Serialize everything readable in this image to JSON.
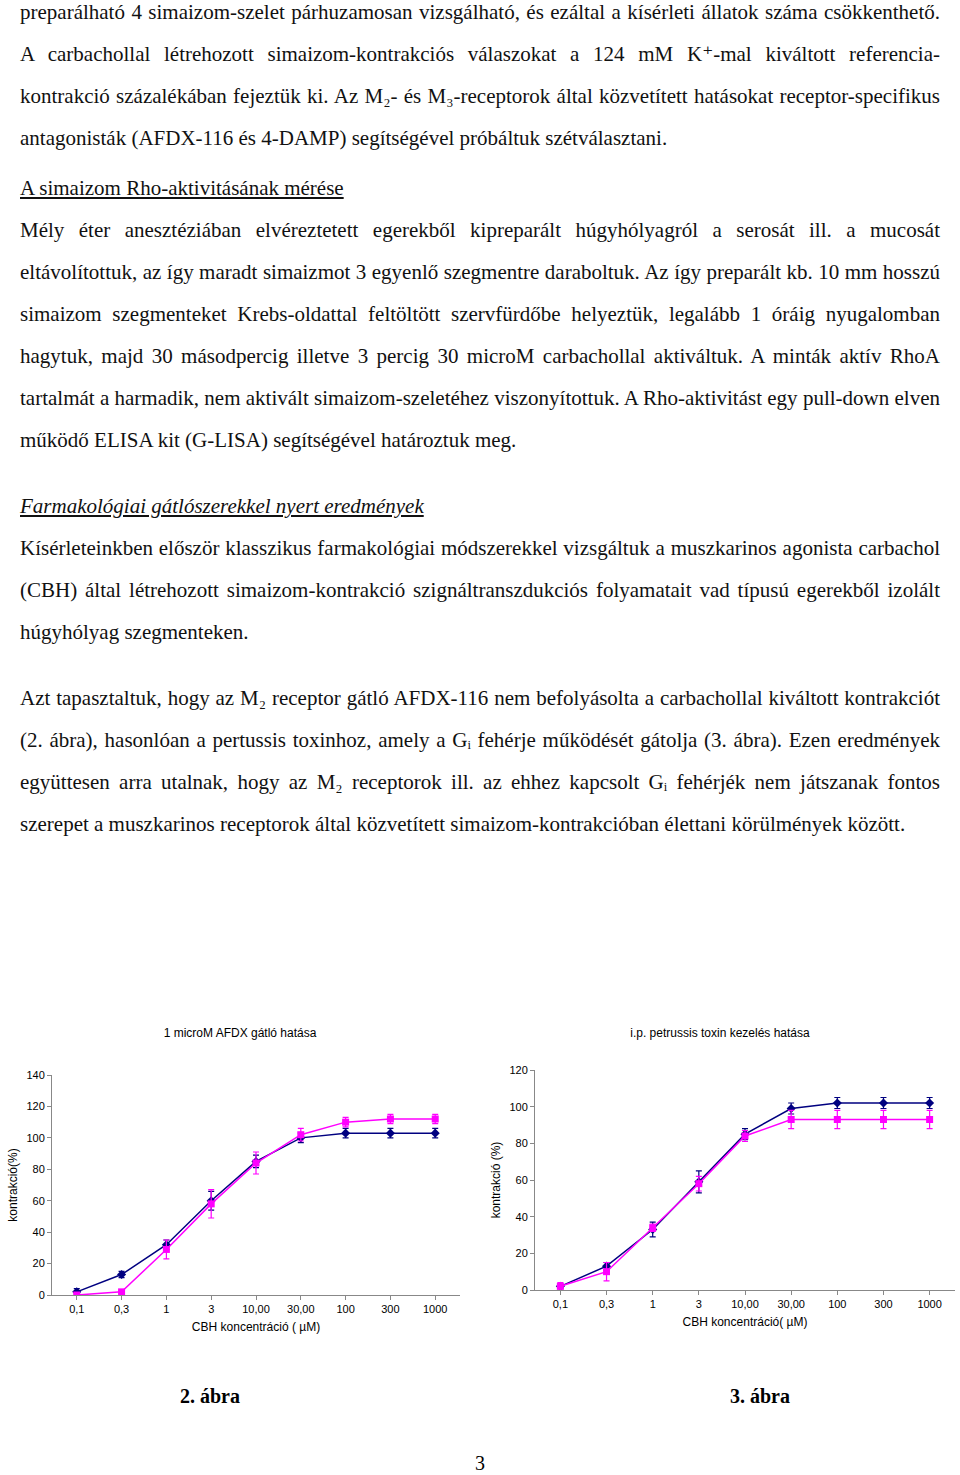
{
  "body": [
    {
      "paragraph": "preparálható 4 simaizom-szelet párhuzamosan vizsgálható, és ezáltal a kísérleti állatok száma csökkenthető. A carbachollal létrehozott simaizom-kontrakciós válaszokat a 124 mM K⁺-mal kiváltott referencia-kontrakció százalékában fejeztük ki. Az M₂- és M₃-receptorok által közvetített hatásokat receptor-specifikus antagonisták (AFDX-116 és 4-DAMP) segítségével próbáltuk szétválasztani."
    },
    {
      "subheading": "A simaizom Rho-aktivitásának mérése"
    },
    {
      "paragraph": "Mély éter anesztéziában elvéreztetett egerekből kipreparált húgyhólyagról a serosát ill. a mucosát eltávolítottuk, az így maradt simaizmot 3 egyenlő szegmentre daraboltuk. Az így preparált kb. 10 mm hosszú simaizom szegmenteket Krebs-oldattal feltöltött szervfürdőbe helyeztük, legalább 1 óráig nyugalomban hagytuk, majd 30 másodpercig illetve 3 percig 30 microM carbachollal aktiváltuk. A minták aktív RhoA tartalmát a harmadik, nem aktivált simaizom-szeletéhez viszonyítottuk. A Rho-aktivitást egy pull-down elven működő ELISA kit (G-LISA) segítségével határoztuk meg."
    },
    {
      "section_heading": "Farmakológiai gátlószerekkel nyert eredmények"
    },
    {
      "paragraph": "Kísérleteinkben először klasszikus farmakológiai módszerekkel vizsgáltuk a muszkarinos agonista carbachol (CBH) által létrehozott simaizom-kontrakció szignáltranszdukciós folyamatait vad típusú egerekből izolált húgyhólyag szegmenteken."
    },
    {
      "paragraph": "Azt tapasztaltuk, hogy az M₂ receptor gátló AFDX-116 nem befolyásolta a carbachollal kiváltott kontrakciót (2. ábra), hasonlóan a pertussis toxinhoz, amely a Gᵢ fehérje működését gátolja (3. ábra). Ezen eredmények együttesen arra utalnak, hogy az M₂ receptorok ill. az ehhez kapcsolt Gᵢ fehérjék nem játszanak fontos szerepet a muszkarinos receptorok által közvetített simaizom-kontrakcióban élettani körülmények között."
    }
  ],
  "chart_data": [
    {
      "type": "line",
      "title": "1 microM AFDX gátló hatása",
      "x_label": "CBH koncentráció ( µM)",
      "y_label": "kontrakció(%)",
      "categories": [
        "0,1",
        "0,3",
        "1",
        "3",
        "10,00",
        "30,00",
        "100",
        "300",
        "1000"
      ],
      "ylim": [
        0,
        140
      ],
      "yticks": [
        0,
        20,
        40,
        60,
        80,
        100,
        120,
        140
      ],
      "grid": false,
      "series": [
        {
          "color": "#000080",
          "marker": "diamond",
          "values": [
            2,
            13,
            32,
            60,
            85,
            100,
            103,
            103,
            103
          ],
          "errors": [
            2,
            2,
            3,
            6,
            4,
            3,
            3,
            3,
            3
          ]
        },
        {
          "color": "#ff00ff",
          "marker": "square",
          "values": [
            0,
            2,
            29,
            58,
            84,
            102,
            110,
            112,
            112
          ],
          "errors": [
            1,
            1,
            6,
            9,
            7,
            4,
            3,
            3,
            3
          ]
        }
      ],
      "caption": "2. ábra"
    },
    {
      "type": "line",
      "title": "i.p. petrussis toxin kezelés hatása",
      "x_label": "CBH koncentráció( µM)",
      "y_label": "kontrakció (%)",
      "categories": [
        "0,1",
        "0,3",
        "1",
        "3",
        "10,00",
        "30,00",
        "100",
        "300",
        "1000"
      ],
      "ylim": [
        0,
        120
      ],
      "yticks": [
        0,
        20,
        40,
        60,
        80,
        100,
        120
      ],
      "grid": false,
      "series": [
        {
          "color": "#000080",
          "marker": "diamond",
          "values": [
            2,
            13,
            33,
            59,
            85,
            99,
            102,
            102,
            102
          ],
          "errors": [
            1,
            2,
            4,
            6,
            3,
            3,
            3,
            3,
            3
          ]
        },
        {
          "color": "#ff00ff",
          "marker": "square",
          "values": [
            2,
            10,
            34,
            58,
            84,
            93,
            93,
            93,
            93
          ],
          "errors": [
            2,
            5,
            2,
            4,
            3,
            5,
            5,
            5,
            5
          ]
        }
      ],
      "caption": "3. ábra"
    }
  ],
  "page_number": "3"
}
